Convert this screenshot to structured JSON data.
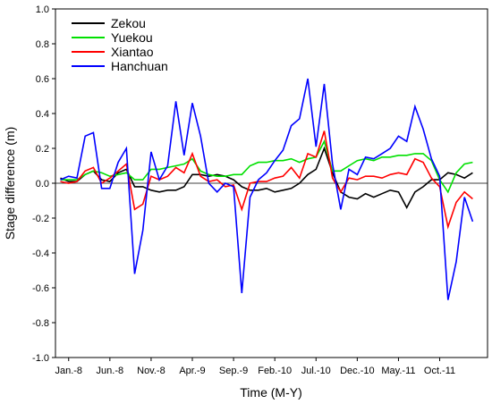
{
  "chart_data": {
    "type": "line",
    "x_label": "Time (M-Y)",
    "y_label": "Stage difference (m)",
    "x": [
      0,
      1,
      2,
      3,
      4,
      5,
      6,
      7,
      8,
      9,
      10,
      11,
      12,
      13,
      14,
      15,
      16,
      17,
      18,
      19,
      20,
      21,
      22,
      23,
      24,
      25,
      26,
      27,
      28,
      29,
      30,
      31,
      32,
      33,
      34,
      35,
      36,
      37,
      38,
      39,
      40,
      41,
      42,
      43,
      44,
      45,
      46,
      47,
      48,
      49,
      50
    ],
    "xlim": [
      -0.6,
      51.8
    ],
    "xticks": [
      {
        "value": 1,
        "label": "Jan.-8"
      },
      {
        "value": 6,
        "label": "Jun.-8"
      },
      {
        "value": 11,
        "label": "Nov.-8"
      },
      {
        "value": 16,
        "label": "Apr.-9"
      },
      {
        "value": 21,
        "label": "Sep.-9"
      },
      {
        "value": 26,
        "label": "Feb.-10"
      },
      {
        "value": 31,
        "label": "Jul.-10"
      },
      {
        "value": 36,
        "label": "Dec.-10"
      },
      {
        "value": 41,
        "label": "May.-11"
      },
      {
        "value": 46,
        "label": "Oct.-11"
      }
    ],
    "ylim": [
      -1,
      1
    ],
    "yticks": [
      {
        "value": -1,
        "label": "-1.0"
      },
      -0.8,
      -0.6,
      -0.4,
      -0.2,
      {
        "value": 0,
        "label": "0.0"
      },
      0.2,
      0.4,
      0.6,
      0.8,
      {
        "value": 1,
        "label": "1.0"
      }
    ],
    "zero_line": true,
    "legend": "upper left",
    "series": [
      {
        "name": "Zekou",
        "color": "#000000",
        "values": [
          0.03,
          0.01,
          0.01,
          0.05,
          0.07,
          0.02,
          0.01,
          0.06,
          0.08,
          -0.02,
          -0.02,
          -0.04,
          -0.05,
          -0.04,
          -0.04,
          -0.02,
          0.05,
          0.05,
          0.04,
          0.05,
          0.04,
          0.02,
          -0.02,
          -0.04,
          -0.04,
          -0.03,
          -0.05,
          -0.04,
          -0.03,
          0.0,
          0.05,
          0.08,
          0.2,
          0.06,
          -0.05,
          -0.08,
          -0.09,
          -0.06,
          -0.08,
          -0.06,
          -0.04,
          -0.05,
          -0.14,
          -0.05,
          -0.02,
          0.02,
          0.02,
          0.06,
          0.05,
          0.03,
          0.06
        ]
      },
      {
        "name": "Yuekou",
        "color": "#00e000",
        "values": [
          0.02,
          0.02,
          0.02,
          0.05,
          0.07,
          0.06,
          0.04,
          0.05,
          0.06,
          0.02,
          0.02,
          0.08,
          0.08,
          0.09,
          0.1,
          0.11,
          0.14,
          0.07,
          0.05,
          0.04,
          0.04,
          0.05,
          0.05,
          0.1,
          0.12,
          0.12,
          0.13,
          0.13,
          0.14,
          0.12,
          0.14,
          0.15,
          0.24,
          0.07,
          0.07,
          0.1,
          0.13,
          0.14,
          0.13,
          0.15,
          0.15,
          0.16,
          0.16,
          0.17,
          0.17,
          0.13,
          0.02,
          -0.05,
          0.06,
          0.11,
          0.12
        ]
      },
      {
        "name": "Xiantao",
        "color": "#ff0000",
        "values": [
          0.01,
          0.0,
          0.01,
          0.07,
          0.09,
          0.0,
          0.03,
          0.07,
          0.11,
          -0.15,
          -0.12,
          0.04,
          0.02,
          0.04,
          0.09,
          0.06,
          0.17,
          0.04,
          0.01,
          0.02,
          -0.02,
          -0.01,
          -0.15,
          0.0,
          0.01,
          0.01,
          0.03,
          0.04,
          0.09,
          0.03,
          0.17,
          0.15,
          0.3,
          0.03,
          -0.05,
          0.03,
          0.02,
          0.04,
          0.04,
          0.03,
          0.05,
          0.06,
          0.05,
          0.14,
          0.12,
          0.03,
          -0.02,
          -0.25,
          -0.11,
          -0.05,
          -0.09
        ]
      },
      {
        "name": "Hanchuan",
        "color": "#0000ff",
        "values": [
          0.02,
          0.04,
          0.03,
          0.27,
          0.29,
          -0.03,
          -0.03,
          0.12,
          0.2,
          -0.52,
          -0.27,
          0.18,
          0.02,
          0.1,
          0.47,
          0.16,
          0.46,
          0.27,
          0.0,
          -0.05,
          0.0,
          -0.02,
          -0.63,
          -0.08,
          0.02,
          0.06,
          0.13,
          0.19,
          0.33,
          0.37,
          0.6,
          0.21,
          0.57,
          0.11,
          -0.15,
          0.08,
          0.05,
          0.15,
          0.14,
          0.17,
          0.2,
          0.27,
          0.24,
          0.44,
          0.31,
          0.14,
          0.04,
          -0.67,
          -0.45,
          -0.08,
          -0.22
        ]
      }
    ]
  }
}
